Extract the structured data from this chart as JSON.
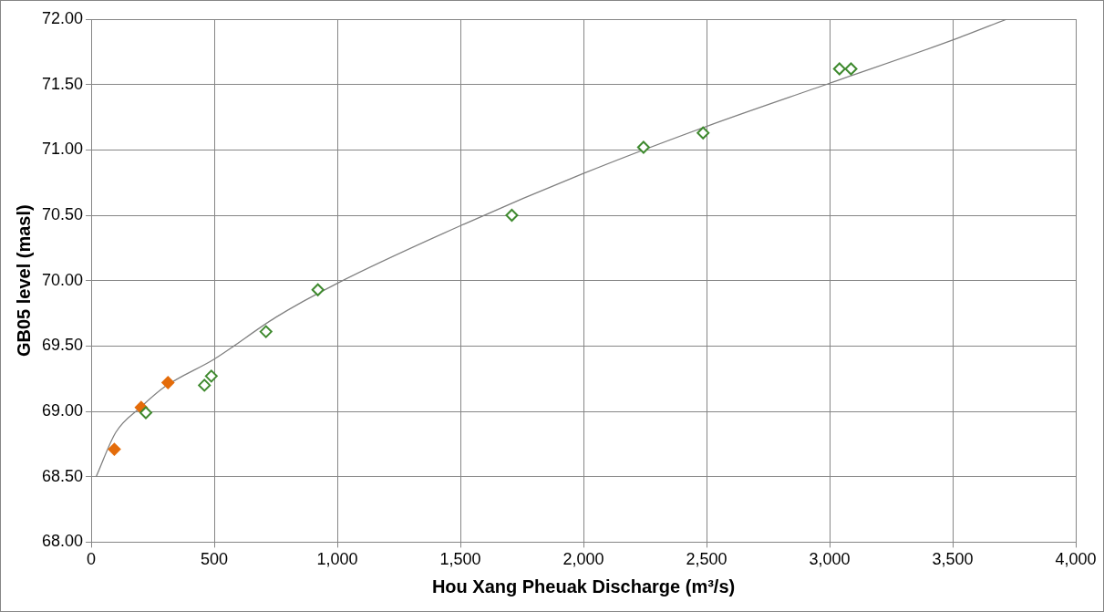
{
  "chart_data": {
    "type": "scatter",
    "xlabel": "Hou Xang Pheuak Discharge (m³/s)",
    "ylabel": "GB05 level (masl)",
    "xlim": [
      0,
      4000
    ],
    "xticks": [
      0,
      500,
      {
        "value": 1000,
        "label": "1,000"
      },
      {
        "value": 1500,
        "label": "1,500"
      },
      {
        "value": 2000,
        "label": "2,000"
      },
      {
        "value": 2500,
        "label": "2,500"
      },
      {
        "value": 3000,
        "label": "3,000"
      },
      {
        "value": 3500,
        "label": "3,500"
      },
      {
        "value": 4000,
        "label": "4,000"
      }
    ],
    "ylim": [
      68,
      72
    ],
    "yticks": [
      {
        "value": 68,
        "label": "68.00"
      },
      {
        "value": 68.5,
        "label": "68.50"
      },
      {
        "value": 69,
        "label": "69.00"
      },
      {
        "value": 69.5,
        "label": "69.50"
      },
      {
        "value": 70,
        "label": "70.00"
      },
      {
        "value": 70.5,
        "label": "70.50"
      },
      {
        "value": 71,
        "label": "71.00"
      },
      {
        "value": 71.5,
        "label": "71.50"
      },
      {
        "value": 72,
        "label": "72.00"
      }
    ],
    "grid": true,
    "legend": false,
    "marker": "diamond",
    "series": [
      {
        "type": "line",
        "color": "#808080",
        "marker": "none",
        "x": [
          20,
          100,
          200,
          300,
          500,
          750,
          1000,
          1500,
          2000,
          2500,
          3000,
          3500,
          3720
        ],
        "values": [
          68.5,
          68.84,
          69.03,
          69.19,
          69.4,
          69.72,
          69.98,
          70.42,
          70.82,
          71.18,
          71.51,
          71.84,
          72.0
        ]
      },
      {
        "color": "#3f8a2f",
        "x": [
          222,
          460,
          488,
          710,
          921,
          1709,
          2244,
          2486,
          3040,
          3087
        ],
        "values": [
          68.99,
          69.2,
          69.27,
          69.61,
          69.93,
          70.5,
          71.02,
          71.13,
          71.62,
          71.62
        ]
      },
      {
        "color": "#e46c0a",
        "x": [
          94,
          203,
          312
        ],
        "values": [
          68.71,
          69.03,
          69.22
        ]
      }
    ]
  }
}
